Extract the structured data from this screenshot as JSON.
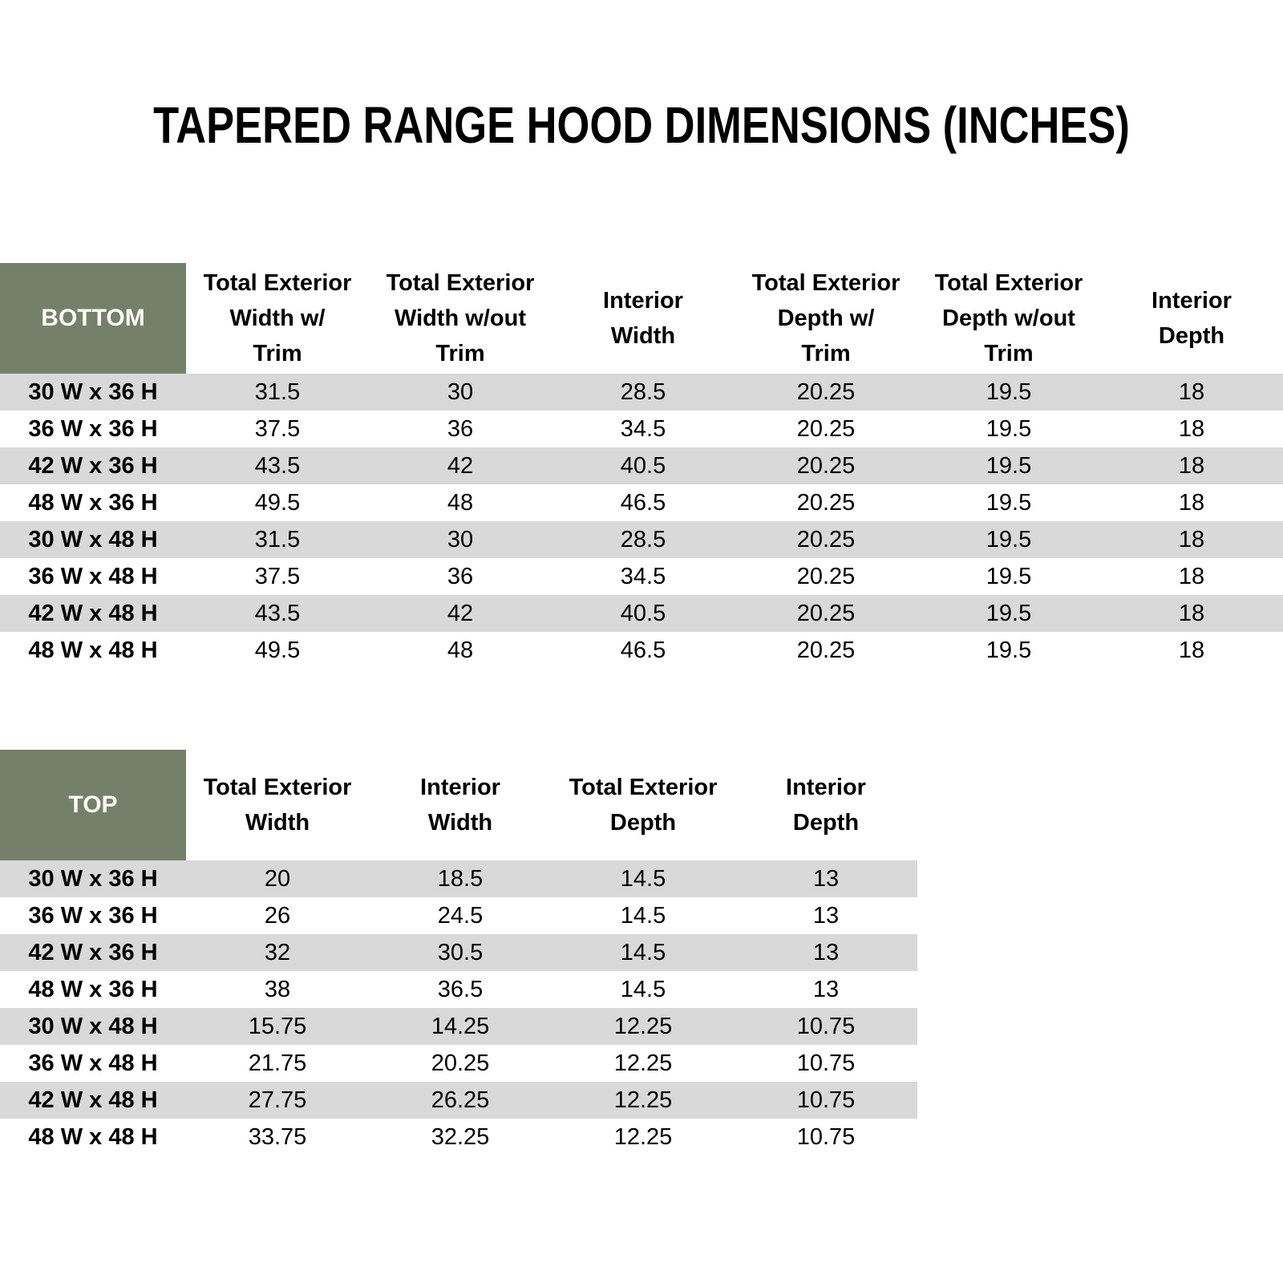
{
  "page": {
    "title": "TAPERED RANGE HOOD DIMENSIONS (INCHES)"
  },
  "colors": {
    "header_bg": "#75806A",
    "header_text": "#FCFBF4",
    "stripe": "#D9D9D9",
    "body_text": "#000000"
  },
  "bottom_table": {
    "corner_label": "BOTTOM",
    "columns": [
      [
        "Total Exterior",
        "Width w/",
        "Trim"
      ],
      [
        "Total Exterior",
        "Width w/out",
        "Trim"
      ],
      [
        "Interior",
        "Width"
      ],
      [
        "Total Exterior",
        "Depth w/",
        "Trim"
      ],
      [
        "Total Exterior",
        "Depth w/out",
        "Trim"
      ],
      [
        "Interior",
        "Depth"
      ]
    ],
    "rows": [
      {
        "label": "30 W x 36 H",
        "values": [
          "31.5",
          "30",
          "28.5",
          "20.25",
          "19.5",
          "18"
        ]
      },
      {
        "label": "36 W x 36 H",
        "values": [
          "37.5",
          "36",
          "34.5",
          "20.25",
          "19.5",
          "18"
        ]
      },
      {
        "label": "42 W x 36 H",
        "values": [
          "43.5",
          "42",
          "40.5",
          "20.25",
          "19.5",
          "18"
        ]
      },
      {
        "label": "48 W x 36 H",
        "values": [
          "49.5",
          "48",
          "46.5",
          "20.25",
          "19.5",
          "18"
        ]
      },
      {
        "label": "30 W x 48 H",
        "values": [
          "31.5",
          "30",
          "28.5",
          "20.25",
          "19.5",
          "18"
        ]
      },
      {
        "label": "36 W x 48 H",
        "values": [
          "37.5",
          "36",
          "34.5",
          "20.25",
          "19.5",
          "18"
        ]
      },
      {
        "label": "42 W x 48 H",
        "values": [
          "43.5",
          "42",
          "40.5",
          "20.25",
          "19.5",
          "18"
        ]
      },
      {
        "label": "48 W x 48 H",
        "values": [
          "49.5",
          "48",
          "46.5",
          "20.25",
          "19.5",
          "18"
        ]
      }
    ]
  },
  "top_table": {
    "corner_label": "TOP",
    "columns": [
      [
        "Total Exterior",
        "Width"
      ],
      [
        "Interior",
        "Width"
      ],
      [
        "Total Exterior",
        "Depth"
      ],
      [
        "Interior",
        "Depth"
      ]
    ],
    "rows": [
      {
        "label": "30 W x 36 H",
        "values": [
          "20",
          "18.5",
          "14.5",
          "13"
        ]
      },
      {
        "label": "36 W x 36 H",
        "values": [
          "26",
          "24.5",
          "14.5",
          "13"
        ]
      },
      {
        "label": "42 W x 36 H",
        "values": [
          "32",
          "30.5",
          "14.5",
          "13"
        ]
      },
      {
        "label": "48 W x 36 H",
        "values": [
          "38",
          "36.5",
          "14.5",
          "13"
        ]
      },
      {
        "label": "30 W x 48 H",
        "values": [
          "15.75",
          "14.25",
          "12.25",
          "10.75"
        ]
      },
      {
        "label": "36 W x 48 H",
        "values": [
          "21.75",
          "20.25",
          "12.25",
          "10.75"
        ]
      },
      {
        "label": "42 W x 48 H",
        "values": [
          "27.75",
          "26.25",
          "12.25",
          "10.75"
        ]
      },
      {
        "label": "48 W x 48 H",
        "values": [
          "33.75",
          "32.25",
          "12.25",
          "10.75"
        ]
      }
    ]
  }
}
